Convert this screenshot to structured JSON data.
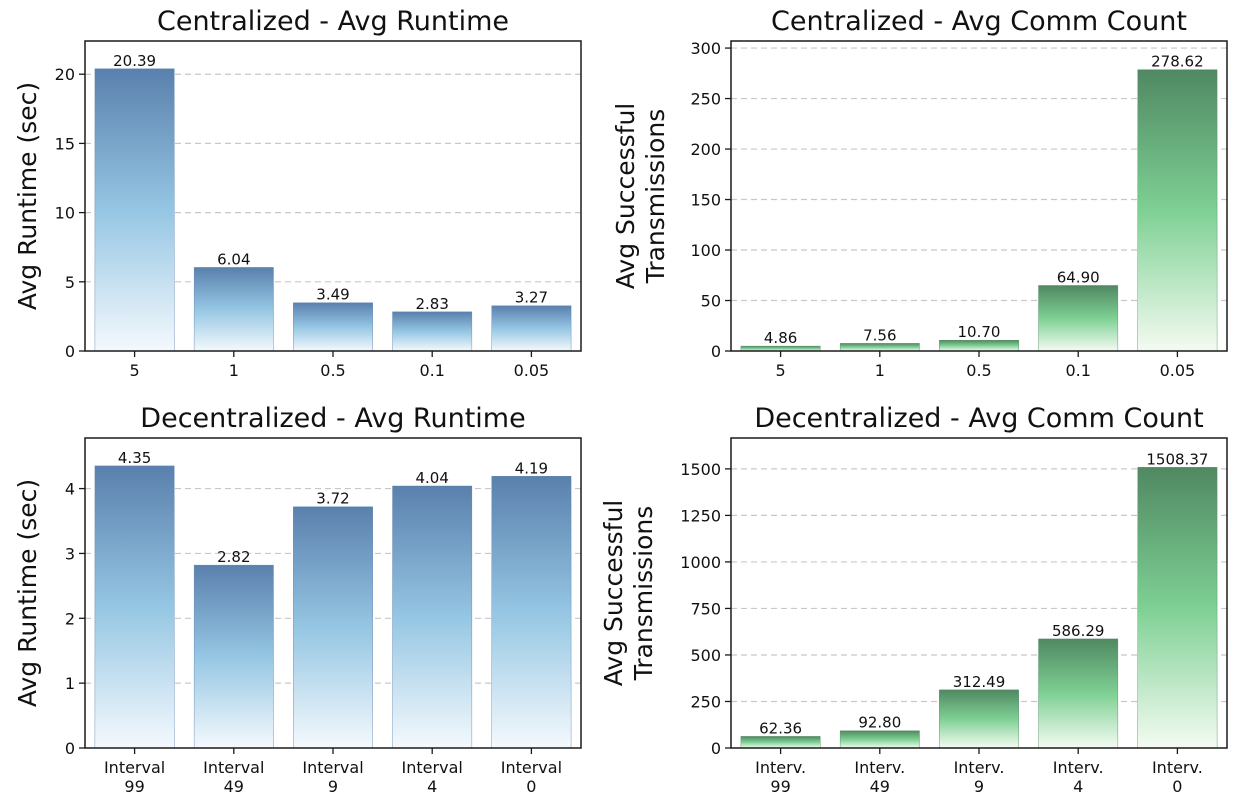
{
  "chart_data": [
    {
      "type": "bar",
      "title": "Centralized - Avg Runtime",
      "ylabel": [
        "Avg Runtime (sec)"
      ],
      "categories": [
        [
          "5"
        ],
        [
          "1"
        ],
        [
          "0.5"
        ],
        [
          "0.1"
        ],
        [
          "0.05"
        ]
      ],
      "values": [
        20.39,
        6.04,
        3.49,
        2.83,
        3.27
      ],
      "value_labels": [
        "20.39",
        "6.04",
        "3.49",
        "2.83",
        "3.27"
      ],
      "ylim": [
        0,
        22.4
      ],
      "yticks": [
        0,
        5,
        10,
        15,
        20
      ],
      "grid": true,
      "palette": "blue",
      "colors": {
        "top": "#5a80ad",
        "mid": "#95c6e3",
        "bottom": "#f4f9fd"
      }
    },
    {
      "type": "bar",
      "title": "Centralized - Avg Comm Count",
      "ylabel": [
        "Avg Successful",
        "Transmissions"
      ],
      "categories": [
        [
          "5"
        ],
        [
          "1"
        ],
        [
          "0.5"
        ],
        [
          "0.1"
        ],
        [
          "0.05"
        ]
      ],
      "values": [
        4.86,
        7.56,
        10.7,
        64.9,
        278.62
      ],
      "value_labels": [
        "4.86",
        "7.56",
        "10.70",
        "64.90",
        "278.62"
      ],
      "ylim": [
        0,
        307
      ],
      "yticks": [
        0,
        50,
        100,
        150,
        200,
        250,
        300
      ],
      "grid": true,
      "palette": "green",
      "colors": {
        "top": "#508862",
        "mid": "#7ed094",
        "bottom": "#f4fbf2"
      }
    },
    {
      "type": "bar",
      "title": "Decentralized - Avg Runtime",
      "ylabel": [
        "Avg Runtime (sec)"
      ],
      "categories": [
        [
          "Interval",
          "99"
        ],
        [
          "Interval",
          "49"
        ],
        [
          "Interval",
          "9"
        ],
        [
          "Interval",
          "4"
        ],
        [
          "Interval",
          "0"
        ]
      ],
      "values": [
        4.35,
        2.82,
        3.72,
        4.04,
        4.19
      ],
      "value_labels": [
        "4.35",
        "2.82",
        "3.72",
        "4.04",
        "4.19"
      ],
      "ylim": [
        0,
        4.78
      ],
      "yticks": [
        0,
        1,
        2,
        3,
        4
      ],
      "grid": true,
      "palette": "blue",
      "colors": {
        "top": "#5a80ad",
        "mid": "#95c6e3",
        "bottom": "#f4f9fd"
      }
    },
    {
      "type": "bar",
      "title": "Decentralized - Avg Comm Count",
      "ylabel": [
        "Avg Successful",
        "Transmissions"
      ],
      "categories": [
        [
          "Interv.",
          "99"
        ],
        [
          "Interv.",
          "49"
        ],
        [
          "Interv.",
          "9"
        ],
        [
          "Interv.",
          "4"
        ],
        [
          "Interv.",
          "0"
        ]
      ],
      "values": [
        62.36,
        92.8,
        312.49,
        586.29,
        1508.37
      ],
      "value_labels": [
        "62.36",
        "92.80",
        "312.49",
        "586.29",
        "1508.37"
      ],
      "ylim": [
        0,
        1666
      ],
      "yticks": [
        0,
        250,
        500,
        750,
        1000,
        1250,
        1500
      ],
      "grid": true,
      "palette": "green",
      "colors": {
        "top": "#508862",
        "mid": "#7ed094",
        "bottom": "#f4fbf2"
      }
    }
  ]
}
